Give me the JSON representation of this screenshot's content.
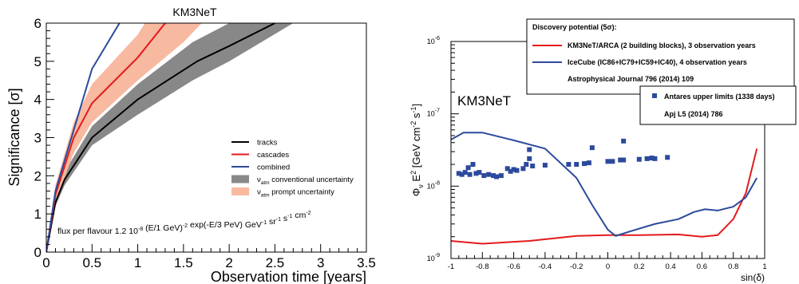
{
  "chart_data": [
    {
      "type": "line",
      "title": "KM3NeT",
      "xlabel": "Observation time [years]",
      "ylabel": "Significance [σ]",
      "xlim": [
        0,
        3.5
      ],
      "ylim": [
        0,
        6
      ],
      "xticks": [
        "0",
        "0.5",
        "1",
        "1.5",
        "2",
        "2.5",
        "3",
        "3.5"
      ],
      "yticks": [
        "0",
        "1",
        "2",
        "3",
        "4",
        "5",
        "6"
      ],
      "grid": false,
      "legend_position": "center-right",
      "annotation": {
        "p1": "flux per flavour 1.2 10",
        "s1": "-8",
        "p2": " (E/1 GeV)",
        "s2": "-2",
        "p3": " exp(-E/3 PeV) GeV",
        "s3": "-1",
        "p4": " sr",
        "s4": "-1",
        "p5": " s",
        "s5": "-1",
        "p6": " cm",
        "s6": "-2"
      },
      "series": [
        {
          "name": "tracks",
          "color": "#000000",
          "points": [
            [
              0,
              0
            ],
            [
              0.1,
              1.3
            ],
            [
              0.2,
              1.9
            ],
            [
              0.5,
              3.0
            ],
            [
              1.0,
              4.0
            ],
            [
              1.65,
              5.0
            ],
            [
              2.0,
              5.4
            ],
            [
              2.5,
              6.0
            ]
          ]
        },
        {
          "name": "cascades",
          "color": "#e31a1c",
          "points": [
            [
              0,
              0
            ],
            [
              0.1,
              1.5
            ],
            [
              0.3,
              3.0
            ],
            [
              0.5,
              3.9
            ],
            [
              1.0,
              5.1
            ],
            [
              1.3,
              6.0
            ]
          ]
        },
        {
          "name": "combined",
          "color": "#2c4a9c",
          "points": [
            [
              0,
              0
            ],
            [
              0.1,
              1.6
            ],
            [
              0.3,
              3.2
            ],
            [
              0.5,
              4.8
            ],
            [
              0.8,
              6.0
            ]
          ]
        }
      ],
      "bands": [
        {
          "name": "conventional uncertainty",
          "label_symbol": "ν",
          "label_sub": "atm",
          "color": "#888888",
          "upper": [
            [
              0,
              0
            ],
            [
              0.1,
              1.45
            ],
            [
              0.2,
              2.1
            ],
            [
              0.5,
              3.3
            ],
            [
              1.0,
              4.4
            ],
            [
              1.6,
              5.5
            ],
            [
              2.0,
              6.0
            ]
          ],
          "lower": [
            [
              0,
              0
            ],
            [
              0.1,
              1.2
            ],
            [
              0.2,
              1.75
            ],
            [
              0.5,
              2.8
            ],
            [
              1.0,
              3.6
            ],
            [
              1.6,
              4.5
            ],
            [
              2.0,
              5.0
            ],
            [
              2.7,
              6.0
            ]
          ]
        },
        {
          "name": "prompt uncertainty",
          "label_symbol": "ν",
          "label_sub": "atm",
          "color": "#f7b9a0",
          "upper": [
            [
              0,
              0
            ],
            [
              0.1,
              1.75
            ],
            [
              0.3,
              3.4
            ],
            [
              0.5,
              4.4
            ],
            [
              1.0,
              5.7
            ],
            [
              1.08,
              6.0
            ]
          ],
          "lower": [
            [
              0,
              0
            ],
            [
              0.1,
              1.3
            ],
            [
              0.3,
              2.6
            ],
            [
              0.5,
              3.4
            ],
            [
              1.0,
              4.5
            ],
            [
              1.5,
              5.5
            ],
            [
              1.7,
              6.0
            ]
          ]
        }
      ]
    },
    {
      "type": "line",
      "title": "",
      "label": "KM3NeT",
      "xlabel": "sin(δ)",
      "ylabel_parts": {
        "phi": "Φ",
        "phi_sub": "ν",
        "e": " E",
        "e_sup": "2",
        "unit": " [GeV cm",
        "u1": "-2",
        "mid": " s",
        "u2": "-1",
        "end": "]"
      },
      "xlim": [
        -1,
        1
      ],
      "ylim_log": [
        1e-09,
        1e-06
      ],
      "log_y": true,
      "xticks": [
        "-1",
        "-0.8",
        "-0.6",
        "-0.4",
        "-0.2",
        "0",
        "0.2",
        "0.4",
        "0.6",
        "0.8",
        "1"
      ],
      "yticks": [
        {
          "base": "10",
          "exp": "-9"
        },
        {
          "base": "10",
          "exp": "-8"
        },
        {
          "base": "10",
          "exp": "-7"
        },
        {
          "base": "10",
          "exp": "-6"
        }
      ],
      "legend_position": "top-right",
      "legend_title": "Discovery potential (5σ):",
      "series": [
        {
          "name": "KM3NeT/ARCA (2 building blocks), 3 observation years",
          "color": "#e31a1c",
          "points": [
            [
              -1,
              1.75e-09
            ],
            [
              -0.8,
              1.6e-09
            ],
            [
              -0.5,
              1.75e-09
            ],
            [
              -0.2,
              2.05e-09
            ],
            [
              0,
              2.1e-09
            ],
            [
              0.2,
              2.1e-09
            ],
            [
              0.45,
              2.15e-09
            ],
            [
              0.6,
              2e-09
            ],
            [
              0.7,
              2.1e-09
            ],
            [
              0.8,
              3.5e-09
            ],
            [
              0.88,
              8e-09
            ],
            [
              0.95,
              3.3e-08
            ]
          ]
        },
        {
          "name": "IceCube (IC86+IC79+IC59+IC40), 4 observation years",
          "color": "#2c4a9c",
          "points": [
            [
              -1,
              4.4e-08
            ],
            [
              -0.92,
              5.5e-08
            ],
            [
              -0.8,
              5.5e-08
            ],
            [
              -0.6,
              4.3e-08
            ],
            [
              -0.4,
              3.3e-08
            ],
            [
              -0.2,
              1.3e-08
            ],
            [
              -0.1,
              5.5e-09
            ],
            [
              0,
              2.5e-09
            ],
            [
              0.05,
              2.05e-09
            ],
            [
              0.15,
              2.4e-09
            ],
            [
              0.3,
              3e-09
            ],
            [
              0.45,
              3.5e-09
            ],
            [
              0.55,
              4.4e-09
            ],
            [
              0.62,
              4.8e-09
            ],
            [
              0.7,
              4.6e-09
            ],
            [
              0.8,
              5.2e-09
            ],
            [
              0.88,
              7e-09
            ],
            [
              0.95,
              1.3e-08
            ]
          ]
        }
      ],
      "legend_note": "Astrophysical Journal 796 (2014) 109",
      "markers": {
        "name": "Antares upper limits (1338 days)",
        "note": "Apj L5 (2014) 786",
        "color": "#2c4a9c",
        "points": [
          [
            -0.95,
            1.5e-08
          ],
          [
            -0.93,
            1.45e-08
          ],
          [
            -0.91,
            1.55e-08
          ],
          [
            -0.89,
            1.8e-08
          ],
          [
            -0.88,
            1.45e-08
          ],
          [
            -0.86,
            2e-08
          ],
          [
            -0.84,
            1.5e-08
          ],
          [
            -0.82,
            1.55e-08
          ],
          [
            -0.79,
            1.4e-08
          ],
          [
            -0.76,
            1.45e-08
          ],
          [
            -0.73,
            1.4e-08
          ],
          [
            -0.71,
            1.35e-08
          ],
          [
            -0.68,
            1.4e-08
          ],
          [
            -0.64,
            1.75e-08
          ],
          [
            -0.62,
            1.6e-08
          ],
          [
            -0.6,
            1.7e-08
          ],
          [
            -0.58,
            1.65e-08
          ],
          [
            -0.54,
            1.75e-08
          ],
          [
            -0.52,
            2e-08
          ],
          [
            -0.5,
            2.4e-08
          ],
          [
            -0.5,
            3.2e-08
          ],
          [
            -0.48,
            1.9e-08
          ],
          [
            -0.4,
            1.95e-08
          ],
          [
            -0.25,
            2e-08
          ],
          [
            -0.2,
            2e-08
          ],
          [
            -0.15,
            2.05e-08
          ],
          [
            -0.12,
            2.1e-08
          ],
          [
            -0.1,
            3.4e-08
          ],
          [
            0.0,
            2.2e-08
          ],
          [
            0.03,
            2.2e-08
          ],
          [
            0.08,
            2.3e-08
          ],
          [
            0.1,
            2.3e-08
          ],
          [
            0.1,
            4.2e-08
          ],
          [
            0.2,
            2.35e-08
          ],
          [
            0.25,
            2.4e-08
          ],
          [
            0.28,
            2.45e-08
          ],
          [
            0.3,
            2.4e-08
          ],
          [
            0.38,
            2.5e-08
          ]
        ]
      }
    }
  ]
}
